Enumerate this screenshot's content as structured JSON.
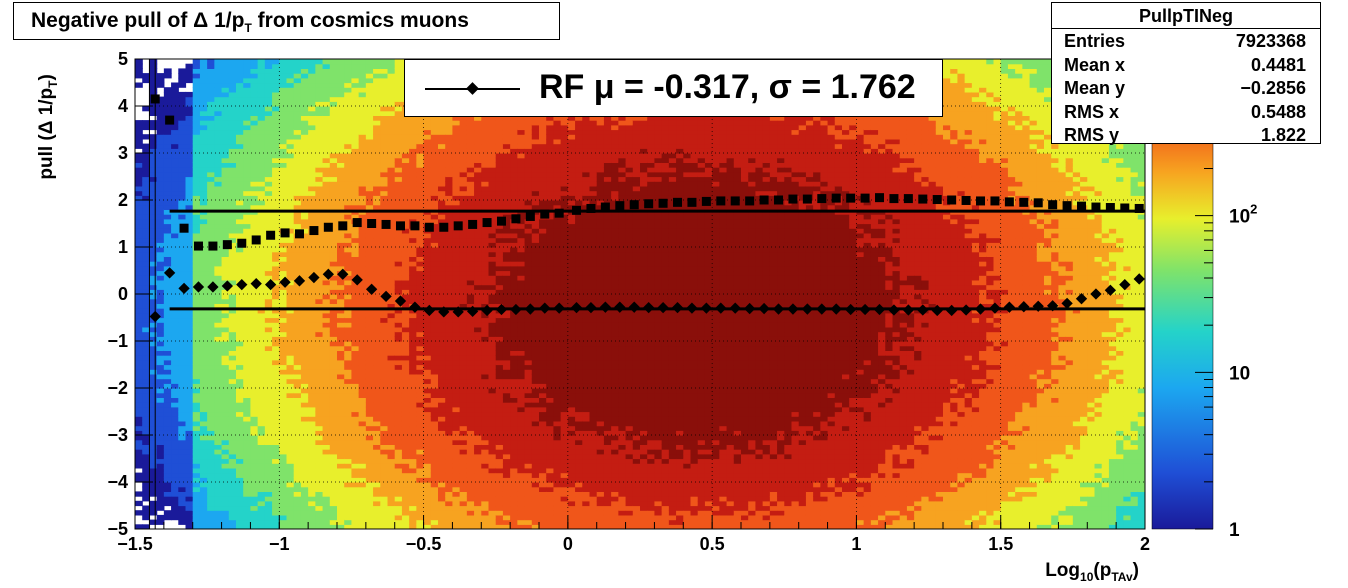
{
  "title": "Negative pull of Δ 1/p",
  "title_sub": "T",
  "title_rest": " from cosmics muons",
  "stats": {
    "name": "PullpTINeg",
    "rows": [
      {
        "label": "Entries",
        "value": "7923368"
      },
      {
        "label": "Mean x",
        "value": "0.4481"
      },
      {
        "label": "Mean y",
        "value": "−0.2856"
      },
      {
        "label": "RMS x",
        "value": "0.5488"
      },
      {
        "label": "RMS y",
        "value": "1.822"
      }
    ]
  },
  "legend": {
    "label": "RF μ = -0.317, σ =   1.762"
  },
  "colors": {
    "markers": "#000000",
    "palette": [
      "#1a1a9a",
      "#1f4fd6",
      "#1ca7f0",
      "#24d3c9",
      "#7fe36a",
      "#e8ef2c",
      "#f7a320",
      "#f0561a",
      "#c41d12",
      "#8a0f0a"
    ]
  },
  "chart_data": {
    "type": "heatmap",
    "xlabel": "Log",
    "xlabel_sub": "10",
    "xlabel_paren_open": "(p",
    "xlabel_sub2": "TAv",
    "xlabel_paren_close": ")",
    "ylabel": "pull (Δ 1/p",
    "ylabel_sub": "T",
    "ylabel_close": ")",
    "xlim": [
      -1.5,
      2
    ],
    "ylim": [
      -5,
      5
    ],
    "zscale": "log",
    "zlim": [
      1,
      1000
    ],
    "xticks": [
      "−1.5",
      "−1",
      "−0.5",
      "0",
      "0.5",
      "1",
      "1.5",
      "2"
    ],
    "xtick_values": [
      -1.5,
      -1,
      -0.5,
      0,
      0.5,
      1,
      1.5,
      2
    ],
    "yticks": [
      "5",
      "4",
      "3",
      "2",
      "1",
      "0",
      "−1",
      "−2",
      "−3",
      "−4",
      "−5"
    ],
    "ytick_values": [
      5,
      4,
      3,
      2,
      1,
      0,
      -1,
      -2,
      -3,
      -4,
      -5
    ],
    "zticks": [
      {
        "label": "1",
        "value": 1
      },
      {
        "label": "10",
        "value": 10
      },
      {
        "label": "10",
        "sup": "2",
        "value": 100
      }
    ],
    "grid": true,
    "hlines": [
      {
        "name": "mean",
        "y": -0.317
      },
      {
        "name": "sigma",
        "y": 1.762
      }
    ],
    "mean_points": {
      "x": [
        -1.43,
        -1.38,
        -1.33,
        -1.28,
        -1.23,
        -1.18,
        -1.13,
        -1.08,
        -1.03,
        -0.98,
        -0.93,
        -0.88,
        -0.83,
        -0.78,
        -0.73,
        -0.68,
        -0.63,
        -0.58,
        -0.53,
        -0.48,
        -0.43,
        -0.38,
        -0.33,
        -0.28,
        -0.23,
        -0.18,
        -0.13,
        -0.08,
        -0.03,
        0.03,
        0.08,
        0.13,
        0.18,
        0.23,
        0.28,
        0.33,
        0.38,
        0.43,
        0.48,
        0.53,
        0.58,
        0.63,
        0.68,
        0.73,
        0.78,
        0.83,
        0.88,
        0.93,
        0.98,
        1.03,
        1.08,
        1.13,
        1.18,
        1.23,
        1.28,
        1.33,
        1.38,
        1.43,
        1.48,
        1.53,
        1.58,
        1.63,
        1.68,
        1.73,
        1.78,
        1.83,
        1.88,
        1.93,
        1.98
      ],
      "y": [
        -0.48,
        0.45,
        0.12,
        0.15,
        0.15,
        0.17,
        0.2,
        0.22,
        0.2,
        0.25,
        0.28,
        0.35,
        0.42,
        0.42,
        0.3,
        0.1,
        -0.05,
        -0.15,
        -0.28,
        -0.35,
        -0.38,
        -0.38,
        -0.37,
        -0.35,
        -0.33,
        -0.33,
        -0.32,
        -0.3,
        -0.3,
        -0.29,
        -0.29,
        -0.28,
        -0.28,
        -0.28,
        -0.29,
        -0.29,
        -0.29,
        -0.3,
        -0.3,
        -0.3,
        -0.3,
        -0.31,
        -0.31,
        -0.32,
        -0.32,
        -0.32,
        -0.32,
        -0.32,
        -0.33,
        -0.33,
        -0.33,
        -0.34,
        -0.34,
        -0.34,
        -0.35,
        -0.35,
        -0.34,
        -0.32,
        -0.3,
        -0.28,
        -0.27,
        -0.26,
        -0.25,
        -0.2,
        -0.1,
        0.0,
        0.08,
        0.2,
        0.32
      ]
    },
    "sigma_points": {
      "x": [
        -1.43,
        -1.38,
        -1.33,
        -1.28,
        -1.23,
        -1.18,
        -1.13,
        -1.08,
        -1.03,
        -0.98,
        -0.93,
        -0.88,
        -0.83,
        -0.78,
        -0.73,
        -0.68,
        -0.63,
        -0.58,
        -0.53,
        -0.48,
        -0.43,
        -0.38,
        -0.33,
        -0.28,
        -0.23,
        -0.18,
        -0.13,
        -0.08,
        -0.03,
        0.03,
        0.08,
        0.13,
        0.18,
        0.23,
        0.28,
        0.33,
        0.38,
        0.43,
        0.48,
        0.53,
        0.58,
        0.63,
        0.68,
        0.73,
        0.78,
        0.83,
        0.88,
        0.93,
        0.98,
        1.03,
        1.08,
        1.13,
        1.18,
        1.23,
        1.28,
        1.33,
        1.38,
        1.43,
        1.48,
        1.53,
        1.58,
        1.63,
        1.68,
        1.73,
        1.78,
        1.83,
        1.88,
        1.93,
        1.98
      ],
      "y": [
        4.15,
        3.7,
        1.4,
        1.02,
        1.02,
        1.05,
        1.08,
        1.15,
        1.25,
        1.3,
        1.28,
        1.35,
        1.42,
        1.45,
        1.52,
        1.5,
        1.48,
        1.45,
        1.45,
        1.42,
        1.42,
        1.45,
        1.48,
        1.52,
        1.55,
        1.6,
        1.65,
        1.7,
        1.72,
        1.78,
        1.82,
        1.85,
        1.88,
        1.9,
        1.92,
        1.93,
        1.95,
        1.95,
        1.97,
        1.98,
        1.98,
        1.98,
        2.0,
        2.0,
        2.02,
        2.02,
        2.03,
        2.04,
        2.04,
        2.04,
        2.05,
        2.03,
        2.03,
        2.02,
        2.01,
        2.0,
        1.99,
        1.98,
        1.98,
        1.96,
        1.95,
        1.94,
        1.9,
        1.88,
        1.87,
        1.85,
        1.84,
        1.83,
        1.82
      ]
    },
    "outliers": [
      {
        "x": -1.45,
        "y": 4.15
      },
      {
        "x": -1.43,
        "y": -0.48
      }
    ]
  }
}
